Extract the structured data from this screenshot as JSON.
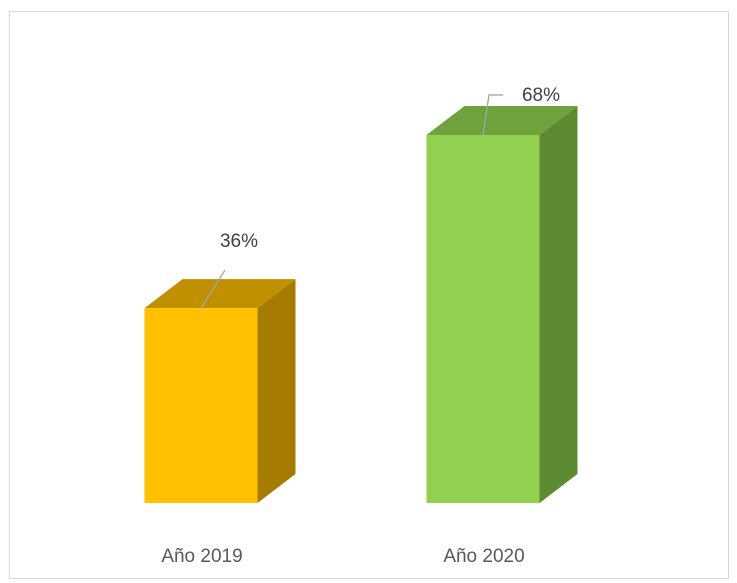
{
  "chart_data": {
    "type": "bar",
    "style": "3d-column",
    "categories": [
      "Año 2019",
      "Año 2020"
    ],
    "values": [
      36,
      68
    ],
    "data_labels": [
      "36%",
      "68%"
    ],
    "unit": "%",
    "ylim": [
      0,
      80
    ],
    "grid": false,
    "legend": "none",
    "colors": {
      "Año 2019": {
        "front": "#ffc000",
        "top": "#c09000",
        "side": "#a67c00"
      },
      "Año 2020": {
        "front": "#92d050",
        "top": "#6fa23c",
        "side": "#5e8a32"
      }
    },
    "leader_line_color": "#a6a6a6"
  }
}
